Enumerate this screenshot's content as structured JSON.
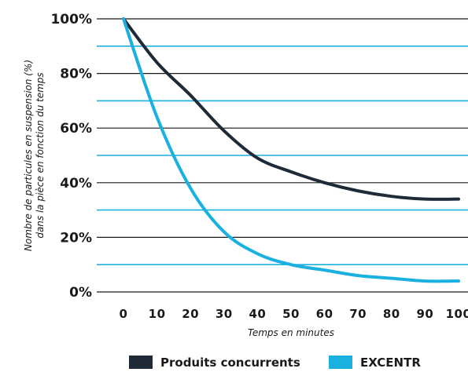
{
  "chart_data": {
    "type": "line",
    "title": "",
    "xlabel": "Temps en minutes",
    "ylabel_lines": [
      "Nombre de particules en suspension (%)",
      "dans la pièce en fonction du temps"
    ],
    "x": [
      0,
      10,
      20,
      30,
      40,
      50,
      60,
      70,
      80,
      90,
      100
    ],
    "x_tick_labels": [
      "0",
      "10",
      "20",
      "30",
      "40",
      "50",
      "60",
      "70",
      "80",
      "90",
      "100"
    ],
    "xlim": [
      0,
      100
    ],
    "ylim": [
      0,
      100
    ],
    "y_ticks": [
      0,
      20,
      40,
      60,
      80,
      100
    ],
    "y_tick_labels": [
      "0%",
      "20%",
      "40%",
      "60%",
      "80%",
      "100%"
    ],
    "grid_major_color": "#1a1a1a",
    "grid_minor_color": "#1ab0e0",
    "legend_position": "bottom",
    "series": [
      {
        "name": "Produits concurrents",
        "color": "#1e2a38",
        "values": [
          100,
          84,
          72,
          59,
          49,
          44,
          40,
          37,
          35,
          34,
          34
        ]
      },
      {
        "name": "EXCENTR",
        "color": "#1ab0e0",
        "values": [
          100,
          64,
          38,
          22,
          14,
          10,
          8,
          6,
          5,
          4,
          4
        ]
      }
    ]
  }
}
